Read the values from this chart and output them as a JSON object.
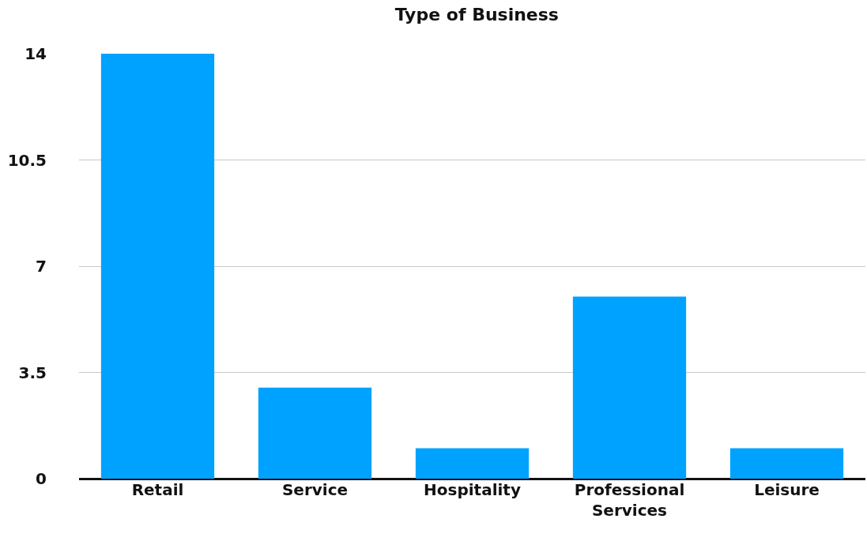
{
  "chart_data": {
    "type": "bar",
    "title": "Type of Business",
    "categories": [
      "Retail",
      "Service",
      "Hospitality",
      "Professional Services",
      "Leisure"
    ],
    "values": [
      14,
      3,
      1,
      6,
      1
    ],
    "color": "#00a2ff",
    "ylim": [
      0,
      14
    ],
    "yticks": [
      0,
      3.5,
      7,
      10.5,
      14
    ],
    "grid": "y"
  }
}
